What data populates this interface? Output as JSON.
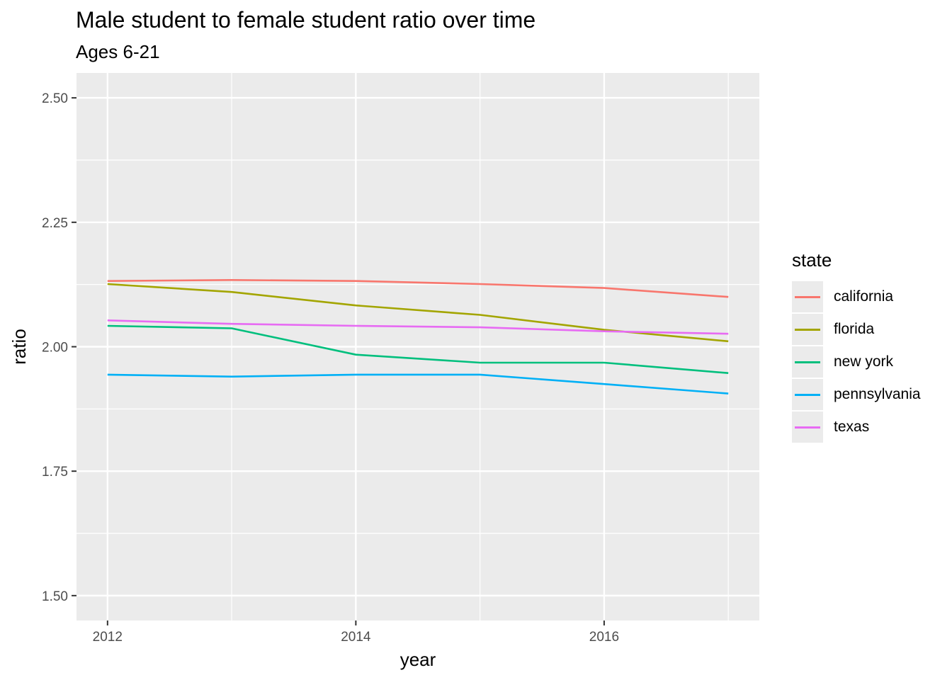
{
  "chart_data": {
    "type": "line",
    "title": "Male student to female student ratio over time",
    "subtitle": "Ages 6-21",
    "xlabel": "year",
    "ylabel": "ratio",
    "x": [
      2012,
      2013,
      2014,
      2015,
      2016,
      2017
    ],
    "xticks": [
      "2012",
      "2014",
      "2016"
    ],
    "yticks": [
      "1.50",
      "1.75",
      "2.00",
      "2.25",
      "2.50"
    ],
    "xlim": [
      2011.75,
      2017.25
    ],
    "ylim": [
      1.45,
      2.55
    ],
    "grid": true,
    "legend_title": "state",
    "legend_position": "right",
    "series": [
      {
        "name": "california",
        "color": "#F8766D",
        "values": [
          2.132,
          2.134,
          2.132,
          2.126,
          2.118,
          2.1
        ]
      },
      {
        "name": "florida",
        "color": "#A3A500",
        "values": [
          2.126,
          2.11,
          2.083,
          2.064,
          2.034,
          2.011
        ]
      },
      {
        "name": "new york",
        "color": "#00BF7D",
        "values": [
          2.042,
          2.037,
          1.984,
          1.968,
          1.968,
          1.947
        ]
      },
      {
        "name": "pennsylvania",
        "color": "#00B0F6",
        "values": [
          1.944,
          1.94,
          1.944,
          1.944,
          1.925,
          1.906
        ]
      },
      {
        "name": "texas",
        "color": "#E76BF3",
        "values": [
          2.053,
          2.046,
          2.042,
          2.039,
          2.031,
          2.026
        ]
      }
    ]
  }
}
